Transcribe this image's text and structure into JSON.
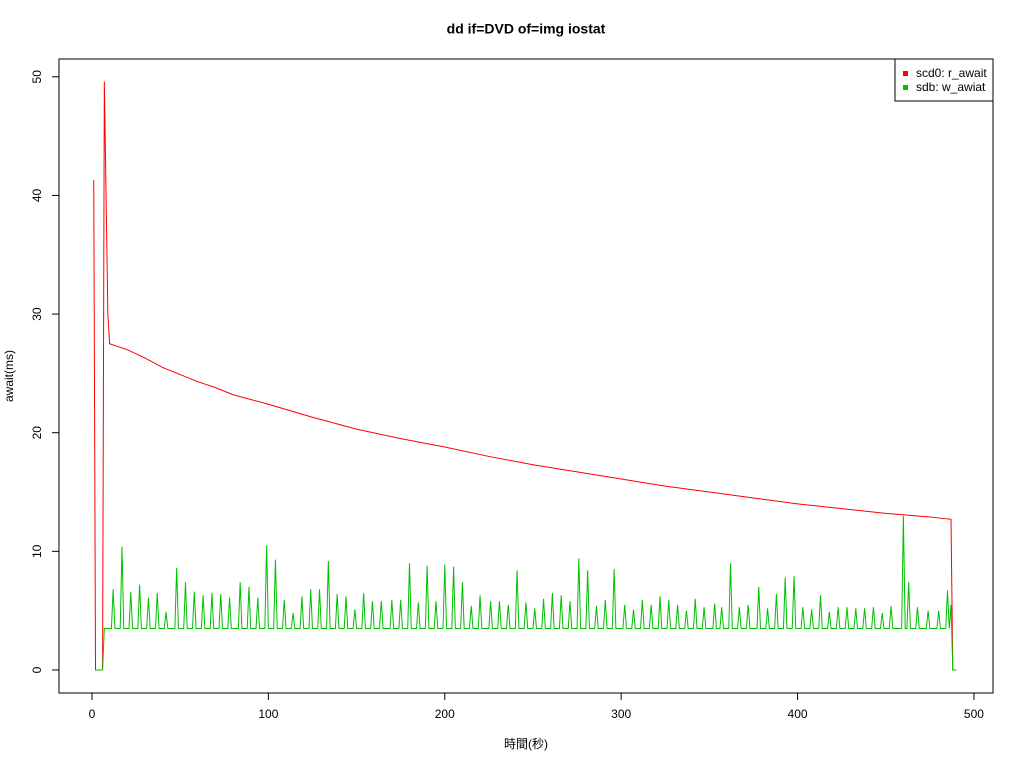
{
  "chart_data": {
    "type": "line",
    "title": "dd if=DVD of=img iostat",
    "xlabel": "時間(秒)",
    "ylabel": "await(ms)",
    "xlim": [
      -18.7,
      510.8
    ],
    "ylim": [
      -1.94,
      51.5
    ],
    "xticks": [
      0,
      100,
      200,
      300,
      400,
      500
    ],
    "yticks": [
      0,
      10,
      20,
      30,
      40,
      50
    ],
    "legend": "topright",
    "series": [
      {
        "name": "scd0: r_await",
        "color": "#ff0000",
        "x": [
          1,
          2,
          6,
          7,
          9,
          10,
          20,
          30,
          40,
          50,
          60,
          70,
          80,
          90,
          100,
          125,
          150,
          175,
          200,
          225,
          250,
          275,
          300,
          325,
          350,
          375,
          400,
          425,
          450,
          475,
          487,
          488,
          490
        ],
        "values": [
          41.3,
          0,
          0,
          49.6,
          30,
          27.5,
          27,
          26.3,
          25.5,
          24.9,
          24.3,
          23.8,
          23.2,
          22.8,
          22.4,
          21.3,
          20.3,
          19.5,
          18.8,
          18.0,
          17.3,
          16.7,
          16.1,
          15.5,
          15.0,
          14.5,
          14.0,
          13.6,
          13.2,
          12.9,
          12.7,
          0,
          0
        ]
      },
      {
        "name": "sdb: w_awiat",
        "color": "#00c000",
        "x": [
          2,
          6,
          7,
          11,
          12,
          13,
          16,
          17,
          18,
          21,
          22,
          23,
          26,
          27,
          28,
          31,
          32,
          33,
          36,
          37,
          38,
          41,
          42,
          43,
          47,
          48,
          49,
          52,
          53,
          54,
          57,
          58,
          59,
          62,
          63,
          64,
          67,
          68,
          69,
          72,
          73,
          74,
          77,
          78,
          79,
          83,
          84,
          85,
          88,
          89,
          90,
          93,
          94,
          95,
          98,
          99,
          100,
          103,
          104,
          105,
          108,
          109,
          110,
          113,
          114,
          115,
          118,
          119,
          120,
          123,
          124,
          125,
          128,
          129,
          130,
          133,
          134,
          135,
          138,
          139,
          140,
          143,
          144,
          145,
          148,
          149,
          150,
          153,
          154,
          155,
          158,
          159,
          160,
          163,
          164,
          165,
          169,
          170,
          171,
          174,
          175,
          176,
          179,
          180,
          181,
          184,
          185,
          186,
          189,
          190,
          191,
          194,
          195,
          196,
          199,
          200,
          201,
          204,
          205,
          206,
          209,
          210,
          211,
          214,
          215,
          216,
          219,
          220,
          221,
          225,
          226,
          227,
          230,
          231,
          232,
          235,
          236,
          237,
          240,
          241,
          242,
          245,
          246,
          247,
          250,
          251,
          252,
          255,
          256,
          257,
          260,
          261,
          262,
          265,
          266,
          267,
          270,
          271,
          272,
          275,
          276,
          277,
          280,
          281,
          282,
          285,
          286,
          287,
          290,
          291,
          292,
          295,
          296,
          297,
          301,
          302,
          303,
          306,
          307,
          308,
          311,
          312,
          313,
          316,
          317,
          318,
          321,
          322,
          323,
          326,
          327,
          328,
          331,
          332,
          333,
          336,
          337,
          338,
          341,
          342,
          343,
          346,
          347,
          348,
          352,
          353,
          354,
          356,
          357,
          358,
          361,
          362,
          363,
          366,
          367,
          368,
          371,
          372,
          373,
          377,
          378,
          379,
          382,
          383,
          384,
          387,
          388,
          389,
          392,
          393,
          394,
          397,
          398,
          399,
          402,
          403,
          404,
          407,
          408,
          409,
          412,
          413,
          414,
          417,
          418,
          419,
          422,
          423,
          424,
          427,
          428,
          429,
          432,
          433,
          434,
          437,
          438,
          439,
          442,
          443,
          444,
          447,
          448,
          449,
          452,
          453,
          454,
          459,
          460,
          461,
          462,
          463,
          464,
          467,
          468,
          469,
          473,
          474,
          475,
          479,
          480,
          481,
          484,
          485,
          486,
          487,
          488,
          490
        ],
        "values": [
          0,
          0,
          3.5,
          3.5,
          6.8,
          3.5,
          3.5,
          10.4,
          3.5,
          3.5,
          6.6,
          3.5,
          3.5,
          7.2,
          3.5,
          3.5,
          6.1,
          3.5,
          3.5,
          6.5,
          3.5,
          3.5,
          4.9,
          3.5,
          3.5,
          8.6,
          3.5,
          3.5,
          7.4,
          3.5,
          3.5,
          6.6,
          3.5,
          3.5,
          6.3,
          3.5,
          3.5,
          6.5,
          3.5,
          3.5,
          6.4,
          3.5,
          3.5,
          6.1,
          3.5,
          3.5,
          7.4,
          3.5,
          3.5,
          7.0,
          3.5,
          3.5,
          6.1,
          3.5,
          3.5,
          10.5,
          3.5,
          3.5,
          9.3,
          3.5,
          3.5,
          5.9,
          3.5,
          3.5,
          4.8,
          3.5,
          3.5,
          6.2,
          3.5,
          3.5,
          6.8,
          3.5,
          3.5,
          6.8,
          3.5,
          3.5,
          9.2,
          3.5,
          3.5,
          6.4,
          3.5,
          3.5,
          6.2,
          3.5,
          3.5,
          5.1,
          3.5,
          3.5,
          6.5,
          3.5,
          3.5,
          5.8,
          3.5,
          3.5,
          5.8,
          3.5,
          3.5,
          5.9,
          3.5,
          3.5,
          5.9,
          3.5,
          3.5,
          9.0,
          3.5,
          3.5,
          5.7,
          3.5,
          3.5,
          8.8,
          3.5,
          3.5,
          5.8,
          3.5,
          3.5,
          8.9,
          3.5,
          3.5,
          8.7,
          3.5,
          3.5,
          7.4,
          3.5,
          3.5,
          5.4,
          3.5,
          3.5,
          6.3,
          3.5,
          3.5,
          5.8,
          3.5,
          3.5,
          5.8,
          3.5,
          3.5,
          5.5,
          3.5,
          3.5,
          8.4,
          3.5,
          3.5,
          5.7,
          3.5,
          3.5,
          5.2,
          3.5,
          3.5,
          6.0,
          3.5,
          3.5,
          6.5,
          3.5,
          3.5,
          6.3,
          3.5,
          3.5,
          5.8,
          3.5,
          3.5,
          9.4,
          3.5,
          3.5,
          8.4,
          3.5,
          3.5,
          5.4,
          3.5,
          3.5,
          5.9,
          3.5,
          3.5,
          8.5,
          3.5,
          3.5,
          5.5,
          3.5,
          3.5,
          5.1,
          3.5,
          3.5,
          5.9,
          3.5,
          3.5,
          5.5,
          3.5,
          3.5,
          6.2,
          3.5,
          3.5,
          5.9,
          3.5,
          3.5,
          5.5,
          3.5,
          3.5,
          5.0,
          3.5,
          3.5,
          6.0,
          3.5,
          3.5,
          5.3,
          3.5,
          3.5,
          5.6,
          3.5,
          3.5,
          5.3,
          3.5,
          3.5,
          9.0,
          3.5,
          3.5,
          5.3,
          3.5,
          3.5,
          5.5,
          3.5,
          3.5,
          7.0,
          3.5,
          3.5,
          5.2,
          3.5,
          3.5,
          6.4,
          3.5,
          3.5,
          7.8,
          3.5,
          3.5,
          7.9,
          3.5,
          3.5,
          5.3,
          3.5,
          3.5,
          5.1,
          3.5,
          3.5,
          6.3,
          3.5,
          3.5,
          4.9,
          3.5,
          3.5,
          5.3,
          3.5,
          3.5,
          5.3,
          3.5,
          3.5,
          5.2,
          3.5,
          3.5,
          5.2,
          3.5,
          3.5,
          5.3,
          3.5,
          3.5,
          4.8,
          3.5,
          3.5,
          5.4,
          3.5,
          3.5,
          13.0,
          3.5,
          3.5,
          7.4,
          3.5,
          3.5,
          5.3,
          3.5,
          3.5,
          5.0,
          3.5,
          3.5,
          5.0,
          3.5,
          3.5,
          6.7,
          3.5,
          5.5,
          0,
          0
        ]
      }
    ]
  }
}
